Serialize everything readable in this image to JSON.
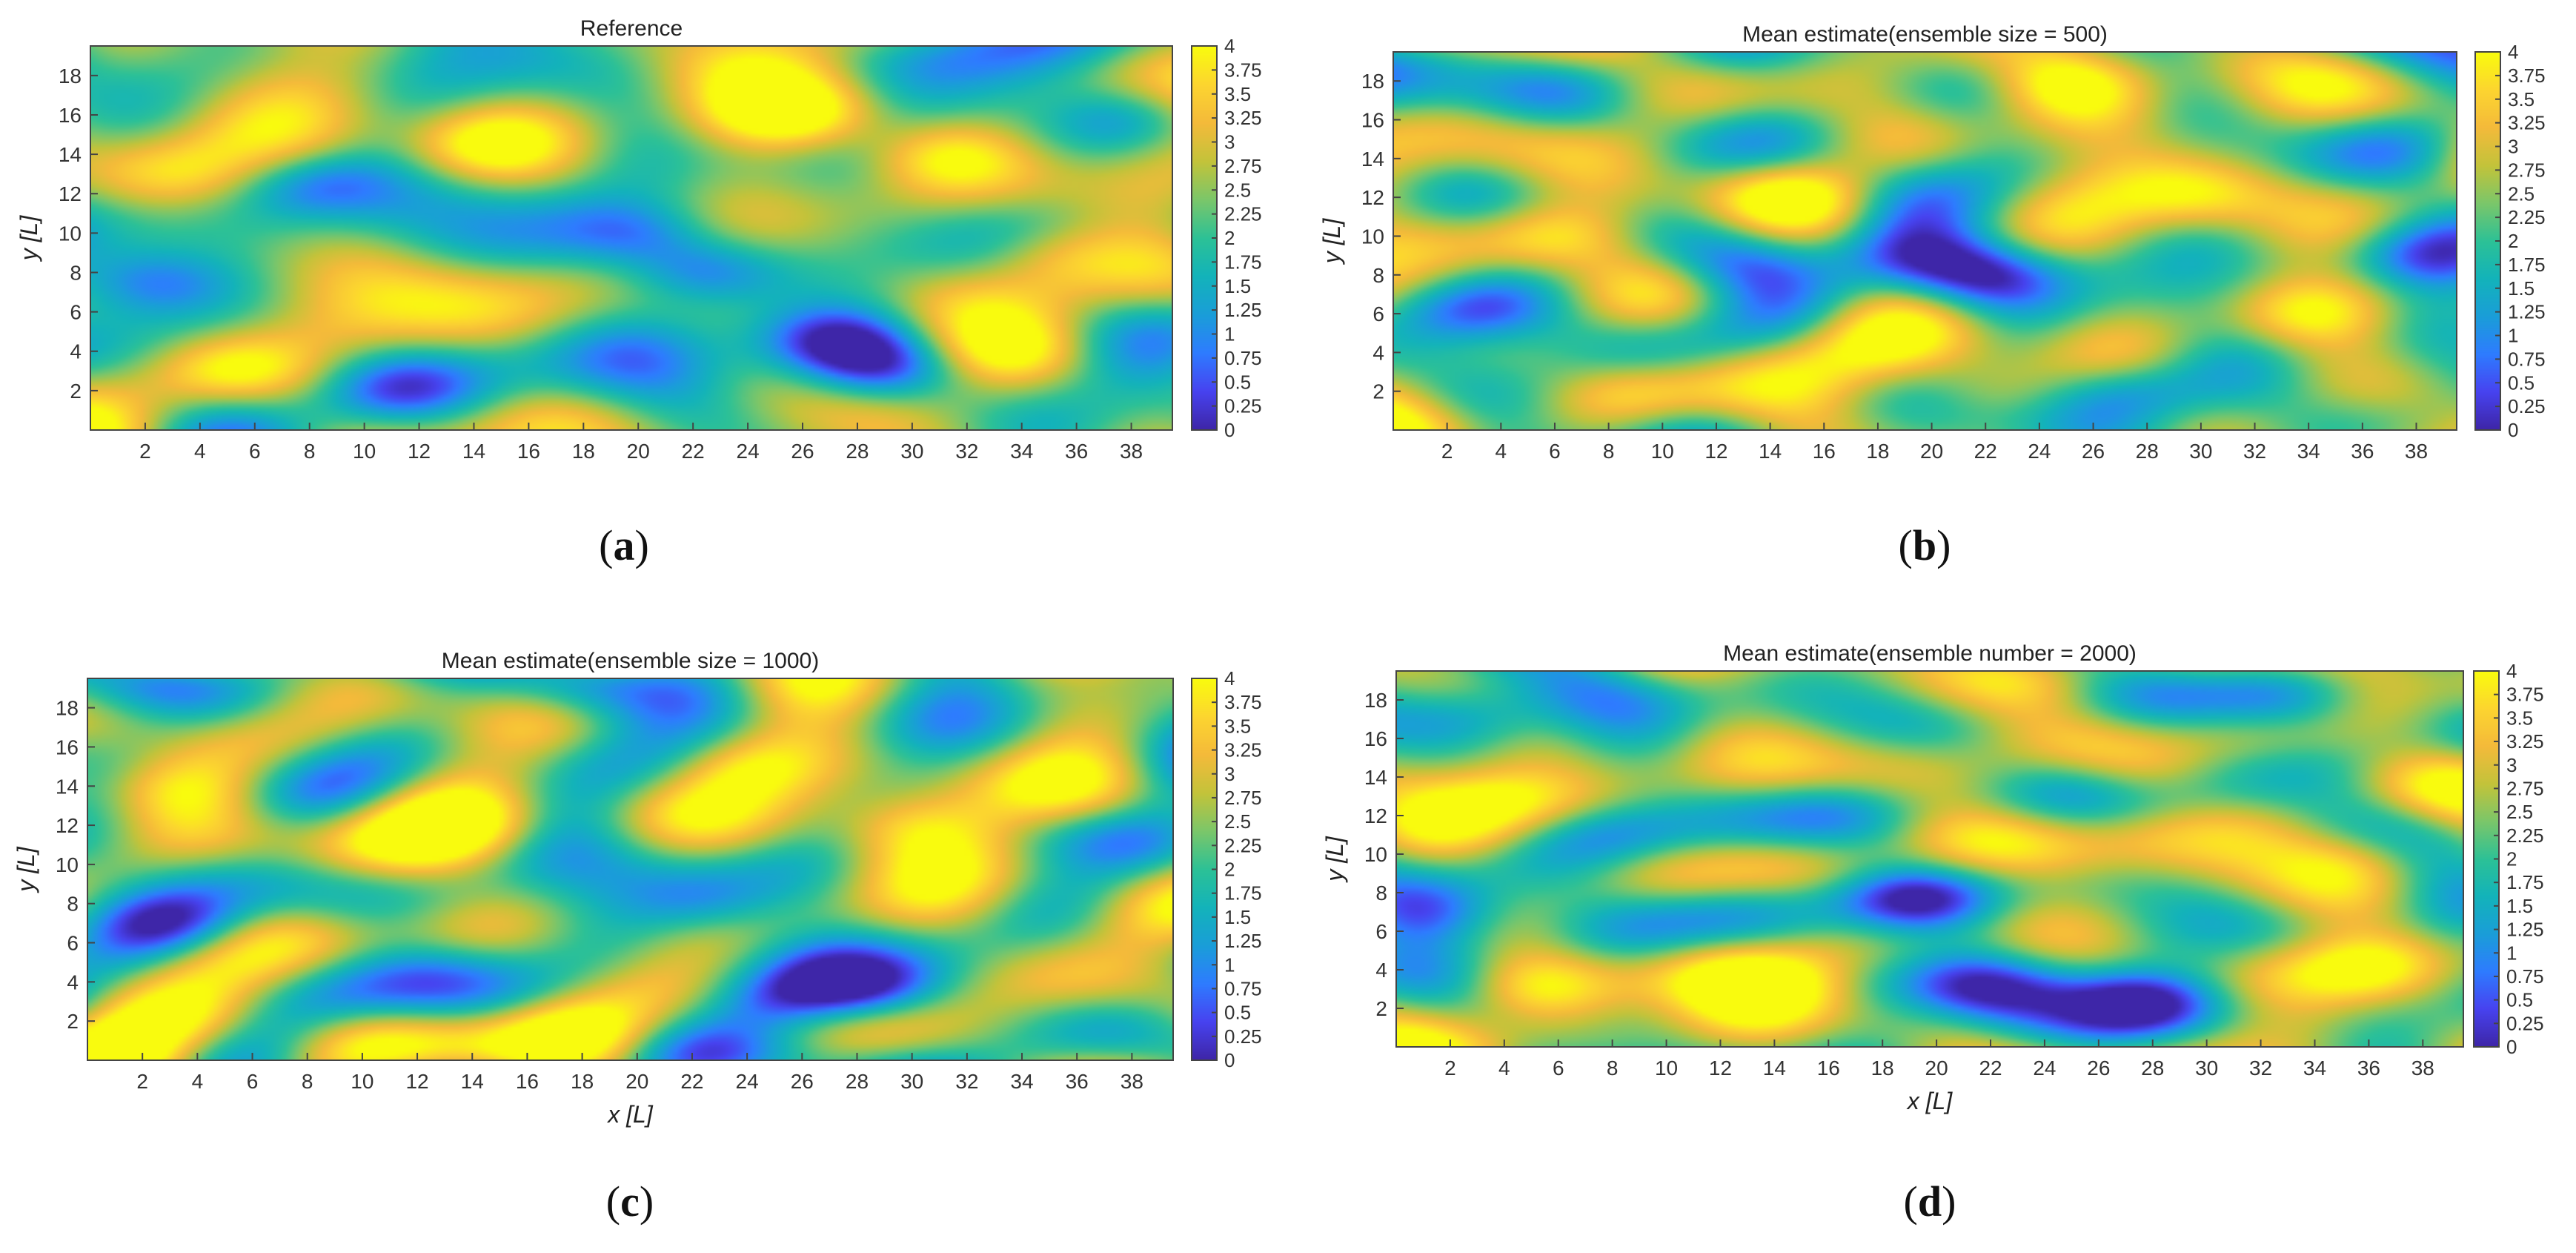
{
  "colormap": [
    "#3e26a8",
    "#4743f0",
    "#2e7cff",
    "#1a9ed8",
    "#13b3ba",
    "#2dc196",
    "#7bc66a",
    "#c3c33a",
    "#f4ba3a",
    "#fcd530",
    "#f9fb0e"
  ],
  "colorbar_ticks": [
    "0",
    "0.25",
    "0.5",
    "0.75",
    "1",
    "1.25",
    "1.5",
    "1.75",
    "2",
    "2.25",
    "2.5",
    "2.75",
    "3",
    "3.25",
    "3.5",
    "3.75",
    "4"
  ],
  "chart_data": [
    {
      "id": "a",
      "type": "heatmap",
      "title": "Reference",
      "caption": "a",
      "xlabel": "",
      "ylabel": "y [L]",
      "xlim": [
        0,
        39.5
      ],
      "ylim": [
        0,
        19.5
      ],
      "clim": [
        0,
        4
      ],
      "xticks": [
        2,
        4,
        6,
        8,
        10,
        12,
        14,
        16,
        18,
        20,
        22,
        24,
        26,
        28,
        30,
        32,
        34,
        36,
        38
      ],
      "yticks": [
        2,
        4,
        6,
        8,
        10,
        12,
        14,
        16,
        18
      ],
      "seed": 11,
      "features": [
        {
          "x": 2,
          "y": 7.5,
          "v": 0.4
        },
        {
          "x": 22.5,
          "y": 8,
          "v": 0.5
        },
        {
          "x": 20,
          "y": 10,
          "v": 0.9
        },
        {
          "x": 27,
          "y": 4.5,
          "v": 0.5
        },
        {
          "x": 29,
          "y": 3,
          "v": 0.6
        },
        {
          "x": 8,
          "y": 12.5,
          "v": 1.0
        },
        {
          "x": 11,
          "y": 2,
          "v": 1.2
        },
        {
          "x": 38,
          "y": 16,
          "v": 1.1
        },
        {
          "x": 26,
          "y": 16,
          "v": 3.9
        },
        {
          "x": 31,
          "y": 14,
          "v": 3.9
        },
        {
          "x": 35,
          "y": 9,
          "v": 3.9
        },
        {
          "x": 34,
          "y": 4,
          "v": 3.8
        },
        {
          "x": 5,
          "y": 3,
          "v": 3.8
        },
        {
          "x": 14,
          "y": 14.5,
          "v": 3.7
        },
        {
          "x": 3,
          "y": 13,
          "v": 3.4
        }
      ]
    },
    {
      "id": "b",
      "type": "heatmap",
      "title": "Mean estimate(ensemble size = 500)",
      "caption": "b",
      "xlabel": "",
      "ylabel": "y [L]",
      "xlim": [
        0,
        39.5
      ],
      "ylim": [
        0,
        19.5
      ],
      "clim": [
        0,
        4
      ],
      "xticks": [
        2,
        4,
        6,
        8,
        10,
        12,
        14,
        16,
        18,
        20,
        22,
        24,
        26,
        28,
        30,
        32,
        34,
        36,
        38
      ],
      "yticks": [
        2,
        4,
        6,
        8,
        10,
        12,
        14,
        16,
        18
      ],
      "seed": 23,
      "features": [
        {
          "x": 22,
          "y": 8,
          "v": 0.7
        },
        {
          "x": 19,
          "y": 9,
          "v": 0.9
        },
        {
          "x": 27,
          "y": 2,
          "v": 0.8
        },
        {
          "x": 38,
          "y": 9,
          "v": 0.9
        },
        {
          "x": 13,
          "y": 8.5,
          "v": 1.2
        },
        {
          "x": 3,
          "y": 6,
          "v": 1.1
        },
        {
          "x": 25,
          "y": 18,
          "v": 3.9
        },
        {
          "x": 30,
          "y": 12,
          "v": 3.8
        },
        {
          "x": 34,
          "y": 6,
          "v": 3.9
        },
        {
          "x": 15,
          "y": 12,
          "v": 3.8
        },
        {
          "x": 6,
          "y": 10,
          "v": 3.7
        },
        {
          "x": 9,
          "y": 2,
          "v": 3.8
        },
        {
          "x": 22,
          "y": 2,
          "v": 3.6
        }
      ]
    },
    {
      "id": "c",
      "type": "heatmap",
      "title": "Mean estimate(ensemble size = 1000)",
      "caption": "c",
      "xlabel": "x [L]",
      "ylabel": "y [L]",
      "xlim": [
        0,
        39.5
      ],
      "ylim": [
        0,
        19.5
      ],
      "clim": [
        0,
        4
      ],
      "xticks": [
        2,
        4,
        6,
        8,
        10,
        12,
        14,
        16,
        18,
        20,
        22,
        24,
        26,
        28,
        30,
        32,
        34,
        36,
        38
      ],
      "yticks": [
        2,
        4,
        6,
        8,
        10,
        12,
        14,
        16,
        18
      ],
      "seed": 37,
      "features": [
        {
          "x": 28,
          "y": 3.5,
          "v": 0.4
        },
        {
          "x": 25,
          "y": 3,
          "v": 0.6
        },
        {
          "x": 18,
          "y": 19,
          "v": 0.5
        },
        {
          "x": 2,
          "y": 19.3,
          "v": 0.6
        },
        {
          "x": 22.5,
          "y": 8,
          "v": 0.8
        },
        {
          "x": 3,
          "y": 7,
          "v": 0.9
        },
        {
          "x": 13,
          "y": 5,
          "v": 1.4
        },
        {
          "x": 3,
          "y": 14,
          "v": 3.9
        },
        {
          "x": 14,
          "y": 12,
          "v": 3.8
        },
        {
          "x": 24,
          "y": 15,
          "v": 3.8
        },
        {
          "x": 30,
          "y": 12,
          "v": 3.9
        },
        {
          "x": 36,
          "y": 10,
          "v": 3.6
        },
        {
          "x": 18,
          "y": 1.5,
          "v": 3.7
        },
        {
          "x": 4,
          "y": 2,
          "v": 3.8
        }
      ]
    },
    {
      "id": "d",
      "type": "heatmap",
      "title": "Mean estimate(ensemble number = 2000)",
      "caption": "d",
      "xlabel": "x [L]",
      "ylabel": "y [L]",
      "xlim": [
        0,
        39.5
      ],
      "ylim": [
        0,
        19.5
      ],
      "clim": [
        0,
        4
      ],
      "xticks": [
        2,
        4,
        6,
        8,
        10,
        12,
        14,
        16,
        18,
        20,
        22,
        24,
        26,
        28,
        30,
        32,
        34,
        36,
        38
      ],
      "yticks": [
        2,
        4,
        6,
        8,
        10,
        12,
        14,
        16,
        18
      ],
      "seed": 51,
      "features": [
        {
          "x": 1.5,
          "y": 7,
          "v": 0.3
        },
        {
          "x": 19,
          "y": 7.5,
          "v": 0.5
        },
        {
          "x": 27.5,
          "y": 2.5,
          "v": 0.4
        },
        {
          "x": 22,
          "y": 3,
          "v": 0.9
        },
        {
          "x": 33,
          "y": 18,
          "v": 0.9
        },
        {
          "x": 8,
          "y": 11,
          "v": 1.1
        },
        {
          "x": 3,
          "y": 17,
          "v": 0.9
        },
        {
          "x": 28,
          "y": 14,
          "v": 3.9
        },
        {
          "x": 36,
          "y": 10,
          "v": 3.8
        },
        {
          "x": 4,
          "y": 13,
          "v": 3.8
        },
        {
          "x": 5,
          "y": 3,
          "v": 3.9
        },
        {
          "x": 14,
          "y": 3,
          "v": 3.6
        },
        {
          "x": 36,
          "y": 4,
          "v": 3.8
        }
      ]
    }
  ]
}
